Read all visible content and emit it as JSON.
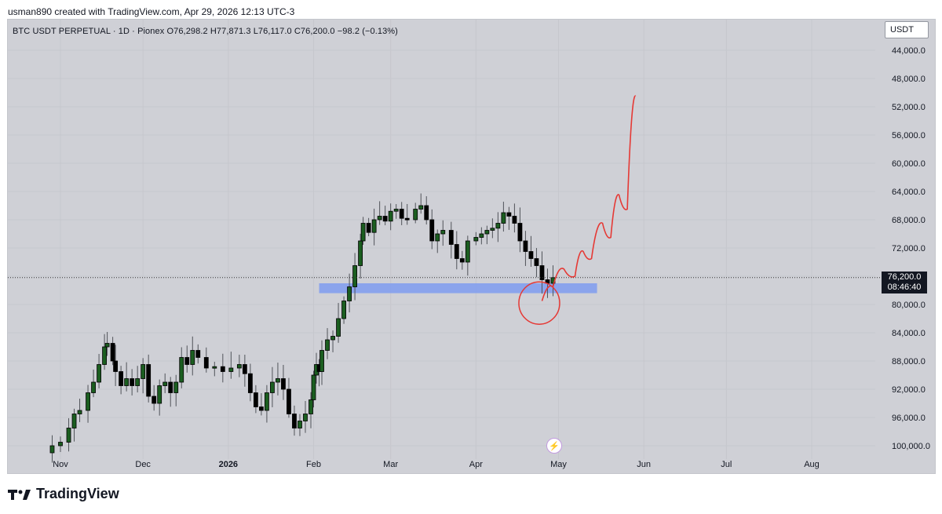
{
  "attribution": "usman890 created with TradingView.com, Apr 29, 2026 12:13 UTC-3",
  "symbol_header": "BTC USDT PERPETUAL · 1D · Pionex  O76,298.2  H77,871.3  L76,117.0  C76,200.0  −98.2 (−0.13%)",
  "currency_button": "USDT",
  "price_tag": {
    "price": "76,200.0",
    "countdown": "08:46:40"
  },
  "brand": {
    "name": "TradingView",
    "icon": "tradingview-logo-icon"
  },
  "annotation_icon": "lightning-icon",
  "colors": {
    "background": "#cfd0d6",
    "up_candle": "#1b5e20",
    "down_candle": "#000000",
    "zone": "#7f9cf0",
    "drawing": "#e53935"
  },
  "chart_data": {
    "type": "candlestick",
    "title": "",
    "y_axis": {
      "inverted": true,
      "range": [
        42000,
        102000
      ],
      "tick_labels": [
        "44,000.0",
        "48,000.0",
        "52,000.0",
        "56,000.0",
        "60,000.0",
        "64,000.0",
        "68,000.0",
        "72,000.0",
        "76,000.0",
        "80,000.0",
        "84,000.0",
        "88,000.0",
        "92,000.0",
        "96,000.0",
        "100,000.0"
      ],
      "ticks": [
        44000,
        48000,
        52000,
        56000,
        60000,
        64000,
        68000,
        72000,
        76000,
        80000,
        84000,
        88000,
        92000,
        96000,
        100000
      ]
    },
    "x_axis": {
      "tick_labels": [
        "Nov",
        "Dec",
        "2026",
        "Feb",
        "Mar",
        "Apr",
        "May",
        "Jun",
        "Jul",
        "Aug"
      ],
      "ticks": [
        "2025-11-01",
        "2025-12-01",
        "2026-01-01",
        "2026-02-01",
        "2026-03-01",
        "2026-04-01",
        "2026-05-01",
        "2026-06-01",
        "2026-07-01",
        "2026-08-01"
      ],
      "bold": [
        "2026"
      ]
    },
    "last_price": 76200,
    "zone": {
      "from": "2026-02-03",
      "to": "2026-05-15",
      "low": 77000,
      "high": 78400
    },
    "closes": [
      [
        "2025-10-26",
        101000
      ],
      [
        "2025-10-29",
        100000
      ],
      [
        "2025-11-01",
        99500
      ],
      [
        "2025-11-04",
        97500
      ],
      [
        "2025-11-06",
        95500
      ],
      [
        "2025-11-08",
        95000
      ],
      [
        "2025-11-11",
        92500
      ],
      [
        "2025-11-13",
        91000
      ],
      [
        "2025-11-15",
        88500
      ],
      [
        "2025-11-17",
        86000
      ],
      [
        "2025-11-18",
        85500
      ],
      [
        "2025-11-20",
        88000
      ],
      [
        "2025-11-21",
        89500
      ],
      [
        "2025-11-23",
        91500
      ],
      [
        "2025-11-25",
        90500
      ],
      [
        "2025-11-27",
        91500
      ],
      [
        "2025-11-29",
        90500
      ],
      [
        "2025-12-01",
        88500
      ],
      [
        "2025-12-03",
        93000
      ],
      [
        "2025-12-05",
        94000
      ],
      [
        "2025-12-07",
        91500
      ],
      [
        "2025-12-09",
        91000
      ],
      [
        "2025-12-11",
        92500
      ],
      [
        "2025-12-13",
        91000
      ],
      [
        "2025-12-15",
        87500
      ],
      [
        "2025-12-17",
        88500
      ],
      [
        "2025-12-19",
        86500
      ],
      [
        "2025-12-21",
        87500
      ],
      [
        "2025-12-24",
        89000
      ],
      [
        "2025-12-27",
        88800
      ],
      [
        "2025-12-30",
        89500
      ],
      [
        "2026-01-02",
        89000
      ],
      [
        "2026-01-05",
        88500
      ],
      [
        "2026-01-07",
        89800
      ],
      [
        "2026-01-09",
        92500
      ],
      [
        "2026-01-11",
        94500
      ],
      [
        "2026-01-13",
        95000
      ],
      [
        "2026-01-15",
        92500
      ],
      [
        "2026-01-17",
        91000
      ],
      [
        "2026-01-19",
        90500
      ],
      [
        "2026-01-21",
        92000
      ],
      [
        "2026-01-23",
        95500
      ],
      [
        "2026-01-25",
        97500
      ],
      [
        "2026-01-27",
        96500
      ],
      [
        "2026-01-29",
        95500
      ],
      [
        "2026-01-31",
        93500
      ],
      [
        "2026-02-01",
        90000
      ],
      [
        "2026-02-02",
        88500
      ],
      [
        "2026-02-03",
        89500
      ],
      [
        "2026-02-04",
        86500
      ],
      [
        "2026-02-06",
        85000
      ],
      [
        "2026-02-08",
        84500
      ],
      [
        "2026-02-10",
        82000
      ],
      [
        "2026-02-12",
        79500
      ],
      [
        "2026-02-14",
        77500
      ],
      [
        "2026-02-16",
        74500
      ],
      [
        "2026-02-18",
        71000
      ],
      [
        "2026-02-19",
        68500
      ],
      [
        "2026-02-21",
        69800
      ],
      [
        "2026-02-23",
        68000
      ],
      [
        "2026-02-25",
        67500
      ],
      [
        "2026-02-27",
        68200
      ],
      [
        "2026-03-01",
        66800
      ],
      [
        "2026-03-03",
        66500
      ],
      [
        "2026-03-05",
        67800
      ],
      [
        "2026-03-07",
        68000
      ],
      [
        "2026-03-10",
        66500
      ],
      [
        "2026-03-12",
        66000
      ],
      [
        "2026-03-14",
        68000
      ],
      [
        "2026-03-16",
        71000
      ],
      [
        "2026-03-18",
        70000
      ],
      [
        "2026-03-20",
        69500
      ],
      [
        "2026-03-23",
        71500
      ],
      [
        "2026-03-25",
        73500
      ],
      [
        "2026-03-27",
        74000
      ],
      [
        "2026-03-29",
        71000
      ],
      [
        "2026-04-01",
        70500
      ],
      [
        "2026-04-03",
        70000
      ],
      [
        "2026-04-05",
        69500
      ],
      [
        "2026-04-07",
        69200
      ],
      [
        "2026-04-09",
        68500
      ],
      [
        "2026-04-11",
        67000
      ],
      [
        "2026-04-13",
        67500
      ],
      [
        "2026-04-15",
        68500
      ],
      [
        "2026-04-17",
        71000
      ],
      [
        "2026-04-19",
        72500
      ],
      [
        "2026-04-21",
        73500
      ],
      [
        "2026-04-23",
        74500
      ],
      [
        "2026-04-25",
        76500
      ],
      [
        "2026-04-27",
        77000
      ],
      [
        "2026-04-29",
        76200
      ]
    ],
    "drawing_path": [
      [
        "2026-04-25",
        79500
      ],
      [
        "2026-04-29",
        77500
      ],
      [
        "2026-05-03",
        75000
      ],
      [
        "2026-05-07",
        76000
      ],
      [
        "2026-05-10",
        72500
      ],
      [
        "2026-05-13",
        73500
      ],
      [
        "2026-05-17",
        68500
      ],
      [
        "2026-05-20",
        70500
      ],
      [
        "2026-05-23",
        64500
      ],
      [
        "2026-05-26",
        66500
      ],
      [
        "2026-05-29",
        50500
      ]
    ]
  }
}
